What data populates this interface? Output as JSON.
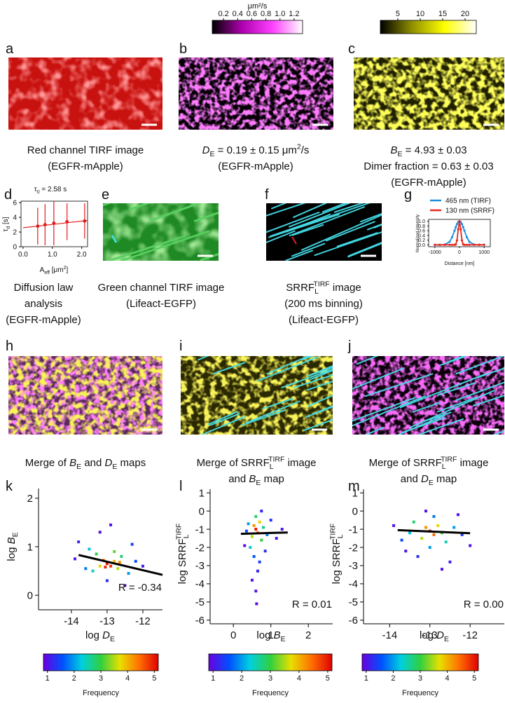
{
  "figure": {
    "panels": [
      {
        "label": "a",
        "caption": [
          [
            {
              "text": "Red channel TIRF image"
            }
          ],
          [
            {
              "text": "(EGFR-mApple)"
            }
          ]
        ]
      },
      {
        "label": "b",
        "caption": [
          [
            {
              "text": "D",
              "style": "italic"
            },
            {
              "text": "E",
              "style": "sub"
            },
            {
              "text": " = 0.19 ± 0.15 μm"
            },
            {
              "text": "2",
              "style": "sup"
            },
            {
              "text": "/s"
            }
          ],
          [
            {
              "text": "(EGFR-mApple)"
            }
          ]
        ]
      },
      {
        "label": "c",
        "caption": [
          [
            {
              "text": "B",
              "style": "italic"
            },
            {
              "text": "E",
              "style": "sub"
            },
            {
              "text": " = 4.93 ± 0.03"
            }
          ],
          [
            {
              "text": "Dimer fraction = 0.63 ± 0.03"
            }
          ],
          [
            {
              "text": "(EGFR-mApple)"
            }
          ]
        ]
      },
      {
        "label": "d",
        "caption": [
          [
            {
              "text": "Diffusion law"
            }
          ],
          [
            {
              "text": "analysis"
            }
          ],
          [
            {
              "text": "(EGFR-mApple)"
            }
          ]
        ]
      },
      {
        "label": "e",
        "caption": [
          [
            {
              "text": "Green channel TIRF image"
            }
          ],
          [
            {
              "text": "(Lifeact-EGFP)"
            }
          ]
        ]
      },
      {
        "label": "f",
        "caption": [
          [
            {
              "text": "SRRF"
            },
            {
              "text": "L",
              "style": "sub"
            },
            {
              "text": "TIRF",
              "style": "sup"
            },
            {
              "text": " image"
            }
          ],
          [
            {
              "text": "(200 ms binning)"
            }
          ],
          [
            {
              "text": "(Lifeact-EGFP)"
            }
          ]
        ]
      },
      {
        "label": "g"
      },
      {
        "label": "h",
        "caption": [
          [
            {
              "text": "Merge of "
            },
            {
              "text": "B",
              "style": "italic"
            },
            {
              "text": "E",
              "style": "sub"
            },
            {
              "text": " and "
            },
            {
              "text": "D",
              "style": "italic"
            },
            {
              "text": "E",
              "style": "sub"
            },
            {
              "text": " maps"
            }
          ]
        ]
      },
      {
        "label": "i",
        "caption": [
          [
            {
              "text": "Merge of SRRF"
            },
            {
              "text": "L",
              "style": "sub"
            },
            {
              "text": "TIRF",
              "style": "sup"
            },
            {
              "text": " image"
            }
          ],
          [
            {
              "text": "and "
            },
            {
              "text": "B",
              "style": "italic"
            },
            {
              "text": "E",
              "style": "sub"
            },
            {
              "text": " map"
            }
          ]
        ]
      },
      {
        "label": "j",
        "caption": [
          [
            {
              "text": "Merge of SRRF"
            },
            {
              "text": "L",
              "style": "sub"
            },
            {
              "text": "TIRF",
              "style": "sup"
            },
            {
              "text": " image"
            }
          ],
          [
            {
              "text": "and "
            },
            {
              "text": "D",
              "style": "italic"
            },
            {
              "text": "E",
              "style": "sub"
            },
            {
              "text": " map"
            }
          ]
        ]
      },
      {
        "label": "k"
      },
      {
        "label": "l"
      },
      {
        "label": "m"
      }
    ],
    "colorbars": [
      {
        "label": "μm²/s",
        "lim": [
          0.04,
          1.32
        ],
        "ticks": [
          0.2,
          0.4,
          0.6,
          0.8,
          {
            "value": 1,
            "label": "1.0"
          },
          1.2
        ],
        "colormap": [
          "#000000",
          "#b000b0",
          "#ff40ff",
          "#ffffff"
        ]
      },
      {
        "lim": [
          1.1,
          22.5
        ],
        "ticks": [
          5,
          10,
          15,
          20
        ],
        "colormap": [
          "#000000",
          "#909000",
          "#ffff00",
          "#ffffff"
        ]
      }
    ]
  },
  "chart_data": [
    {
      "type": "scatter",
      "title": [
        {
          "text": "τ"
        },
        {
          "text": "0",
          "style": "sub"
        },
        {
          "text": " = 2.58 s"
        }
      ],
      "x_label": [
        {
          "text": "A"
        },
        {
          "text": "eff",
          "style": "sub"
        },
        {
          "text": " [μm"
        },
        {
          "text": "2",
          "style": "sup"
        },
        {
          "text": "]"
        }
      ],
      "y_label": [
        {
          "text": "τ"
        },
        {
          "text": "d",
          "style": "sub"
        },
        {
          "text": " [s]"
        }
      ],
      "x": [
        0.5,
        0.75,
        1.05,
        1.5,
        2.1
      ],
      "values": [
        2.8,
        3.0,
        3.2,
        3.4,
        3.5
      ],
      "errors": [
        2.5,
        2.8,
        3.0,
        2.5,
        2.4
      ],
      "color": "#e31a1c",
      "fit": {
        "x": [
          0,
          2.2
        ],
        "values": [
          2.58,
          3.57
        ],
        "color": "#e31a1c"
      },
      "xlim": [
        -0.07,
        2.2
      ],
      "ylim": [
        0,
        6.2
      ],
      "xticks": [
        {
          "value": 0,
          "label": "0.0"
        },
        {
          "value": 1,
          "label": "1.0"
        },
        {
          "value": 2,
          "label": "2.0"
        }
      ],
      "yticks": [
        0,
        2,
        4,
        6
      ],
      "frame": "box"
    },
    {
      "type": "line",
      "x_label": [
        {
          "text": "Distance [nm]"
        }
      ],
      "y_label": [
        {
          "text": "Normalized intensity"
        }
      ],
      "x": [
        -1000,
        -800,
        -600,
        -400,
        -300,
        -200,
        -150,
        -100,
        -50,
        0,
        50,
        100,
        150,
        200,
        300,
        400,
        600,
        800,
        1000
      ],
      "series": [
        {
          "name": "465 nm (TIRF)",
          "color": "#1f8fe0",
          "values": [
            0,
            0,
            0.01,
            0.13,
            0.32,
            0.6,
            0.75,
            0.88,
            0.97,
            1,
            0.97,
            0.88,
            0.75,
            0.6,
            0.32,
            0.13,
            0.01,
            0,
            0
          ]
        },
        {
          "name": "130 nm (SRRF)",
          "color": "#e8261e",
          "values": [
            0,
            0,
            0,
            0,
            0,
            0,
            0.02,
            0.19,
            0.66,
            1,
            0.66,
            0.19,
            0.02,
            0,
            0,
            0,
            0,
            0,
            0
          ]
        }
      ],
      "xlim": [
        -1250,
        1250
      ],
      "ylim": [
        -0.08,
        1.08
      ],
      "xticks": [
        -1000,
        0,
        1000
      ],
      "yticks": [
        {
          "value": 0,
          "label": "0.0"
        },
        0.2,
        0.4,
        0.6,
        0.8,
        {
          "value": 1,
          "label": "1.0"
        }
      ],
      "legend": "top",
      "frame": "box",
      "markers": true
    },
    {
      "type": "scatter",
      "x_label": [
        {
          "text": "log "
        },
        {
          "text": "D",
          "style": "italic"
        },
        {
          "text": "E",
          "style": "sub"
        }
      ],
      "y_label": [
        {
          "text": "log "
        },
        {
          "text": "B",
          "style": "italic"
        },
        {
          "text": "E",
          "style": "sub"
        }
      ],
      "x": [
        -13.0,
        -12.9,
        -13.1,
        -12.8,
        -13.2,
        -12.7,
        -13.3,
        -12.6,
        -13.5,
        -12.4,
        -13.6,
        -12.2,
        -13.8,
        -12.0,
        -13.2,
        -12.5,
        -13.9,
        -12.9,
        -13.0,
        -12.3,
        -13.4,
        -12.8,
        -13.05,
        -12.65
      ],
      "values": [
        0.65,
        0.6,
        0.72,
        0.7,
        0.6,
        0.55,
        0.85,
        0.8,
        0.95,
        0.45,
        0.55,
        0.7,
        1.1,
        0.6,
        1.3,
        0.2,
        0.75,
        1.45,
        0.3,
        1.05,
        0.5,
        0.9,
        0.58,
        0.68
      ],
      "z": [
        5,
        4.8,
        4.5,
        4,
        3.8,
        3.5,
        3,
        2.8,
        2.2,
        2,
        1.8,
        1.5,
        1.2,
        1.1,
        1,
        1,
        1,
        1,
        1.3,
        1.4,
        2.5,
        3.2,
        4.9,
        4.2
      ],
      "fit": {
        "x": [
          -13.8,
          -11.45
        ],
        "values": [
          0.83,
          0.42
        ],
        "color": "#000000"
      },
      "annotation": "R = -0.34",
      "xlim": [
        -14.92,
        -11.45
      ],
      "ylim": [
        -0.3,
        2.2
      ],
      "xticks": [
        -14,
        -13,
        -12
      ],
      "yticks": [
        0,
        1,
        2
      ],
      "frame": "axes",
      "colorbar": {
        "label": "Frequency",
        "clim": [
          0.85,
          5.15
        ],
        "ticks": [
          1,
          2,
          3,
          4,
          5
        ],
        "colormap": [
          "#6a00e0",
          "#0050ff",
          "#00d0e0",
          "#30d040",
          "#e8e000",
          "#ff7000",
          "#e00000"
        ]
      }
    },
    {
      "type": "scatter",
      "x_label": [
        {
          "text": "log "
        },
        {
          "text": "B",
          "style": "italic"
        },
        {
          "text": "E",
          "style": "sub"
        }
      ],
      "y_label": [
        {
          "text": "log SRRF"
        },
        {
          "text": "L",
          "style": "sub"
        },
        {
          "text": "TIRF",
          "style": "sup"
        }
      ],
      "x": [
        0.6,
        0.65,
        0.55,
        0.7,
        0.5,
        0.75,
        0.6,
        0.45,
        0.8,
        0.4,
        0.9,
        0.55,
        0.7,
        0.35,
        1.0,
        0.65,
        0.5,
        0.75,
        1.15,
        0.3,
        0.6,
        0.85,
        1.3,
        0.62
      ],
      "values": [
        -1.0,
        -1.2,
        -0.8,
        -0.6,
        -1.4,
        -1.6,
        -0.3,
        -2.0,
        -0.9,
        -0.7,
        -1.3,
        -2.5,
        -2.8,
        -1.1,
        -0.5,
        -3.3,
        -3.8,
        0.0,
        -1.5,
        -1.9,
        -4.4,
        -2.2,
        -1.0,
        -5.1
      ],
      "z": [
        5,
        4.6,
        4.2,
        3.8,
        3.5,
        3,
        2.8,
        2.4,
        2.6,
        2,
        1.8,
        1.6,
        1.4,
        1.5,
        1.3,
        1.2,
        1,
        1.2,
        1,
        1,
        1,
        1.3,
        1,
        1
      ],
      "fit": {
        "x": [
          0.2,
          1.45
        ],
        "values": [
          -1.25,
          -1.18
        ],
        "color": "#000000"
      },
      "annotation": "R = 0.01",
      "xlim": [
        -0.62,
        2.65
      ],
      "ylim": [
        -6.2,
        1.2
      ],
      "xticks": [
        0,
        1,
        2
      ],
      "yticks": [
        1,
        0,
        -1,
        -2,
        -3,
        -4,
        -5,
        -6
      ],
      "frame": "axes",
      "colorbar": {
        "label": "Frequency",
        "clim": [
          0.85,
          5.15
        ],
        "ticks": [
          1,
          2,
          3,
          4,
          5
        ],
        "colormap": [
          "#6a00e0",
          "#0050ff",
          "#00d0e0",
          "#30d040",
          "#e8e000",
          "#ff7000",
          "#e00000"
        ]
      }
    },
    {
      "type": "scatter",
      "x_label": [
        {
          "text": "log "
        },
        {
          "text": "D",
          "style": "italic"
        },
        {
          "text": "E",
          "style": "sub"
        }
      ],
      "y_label": [
        {
          "text": "log SRRF"
        },
        {
          "text": "L",
          "style": "sub"
        },
        {
          "text": "TIRF",
          "style": "sup"
        }
      ],
      "x": [
        -13.0,
        -12.9,
        -13.1,
        -12.8,
        -13.2,
        -12.7,
        -13.4,
        -12.6,
        -13.5,
        -12.4,
        -13.0,
        -12.9,
        -13.7,
        -12.2,
        -13.3,
        -12.5,
        -13.9,
        -12.0,
        -13.1,
        -12.7,
        -13.6,
        -12.3
      ],
      "values": [
        -1.1,
        -1.3,
        -0.9,
        -0.8,
        -1.5,
        -1.2,
        -0.6,
        -1.7,
        -1.2,
        -0.9,
        -2.0,
        -0.3,
        -1.6,
        -1.3,
        -2.5,
        -2.8,
        -0.8,
        -1.9,
        0.0,
        -3.2,
        -2.2,
        -0.2
      ],
      "z": [
        5,
        4.5,
        4.2,
        3.8,
        3.5,
        3,
        2.8,
        2.5,
        2.2,
        2,
        2,
        1.8,
        1.5,
        1.4,
        1.3,
        1.1,
        1,
        1,
        1,
        1,
        1,
        1
      ],
      "fit": {
        "x": [
          -13.8,
          -12.0
        ],
        "values": [
          -1.05,
          -1.22
        ],
        "color": "#000000"
      },
      "annotation": "R = 0.00",
      "xlim": [
        -14.65,
        -11.15
      ],
      "ylim": [
        -6.2,
        1.2
      ],
      "xticks": [
        -14,
        -13,
        -12
      ],
      "yticks": [
        1,
        0,
        -1,
        -2,
        -3,
        -4,
        -5,
        -6
      ],
      "frame": "axes",
      "colorbar": {
        "label": "Frequency",
        "clim": [
          0.85,
          5.15
        ],
        "ticks": [
          1,
          2,
          3,
          4,
          5
        ],
        "colormap": [
          "#6a00e0",
          "#0050ff",
          "#00d0e0",
          "#30d040",
          "#e8e000",
          "#ff7000",
          "#e00000"
        ]
      }
    }
  ]
}
